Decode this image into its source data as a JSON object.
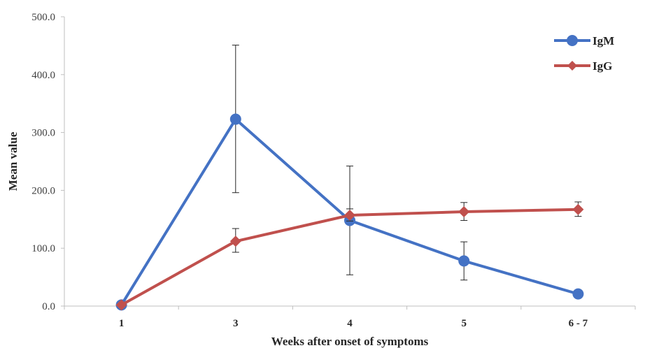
{
  "chart_data": {
    "type": "line",
    "title": "",
    "xlabel": "Weeks after onset of symptoms",
    "ylabel": "Mean value",
    "ylim": [
      0,
      500
    ],
    "yticks": [
      "0.0",
      "100.0",
      "200.0",
      "300.0",
      "400.0",
      "500.0"
    ],
    "ytick_values": [
      0,
      100,
      200,
      300,
      400,
      500
    ],
    "categories": [
      "1",
      "3",
      "4",
      "5",
      "6 - 7"
    ],
    "grid": false,
    "legend_position": "top-right",
    "series": [
      {
        "name": "IgM",
        "color": "#4472C4",
        "marker": "circle",
        "values": [
          2,
          323,
          148,
          78,
          21
        ],
        "error_low": [
          null,
          196,
          54,
          45,
          null
        ],
        "error_high": [
          null,
          451,
          242,
          111,
          null
        ]
      },
      {
        "name": "IgG",
        "color": "#C0504D",
        "marker": "diamond",
        "values": [
          2,
          112,
          157,
          163,
          167
        ],
        "error_low": [
          null,
          93,
          147,
          148,
          155
        ],
        "error_high": [
          null,
          134,
          168,
          179,
          180
        ]
      }
    ]
  }
}
